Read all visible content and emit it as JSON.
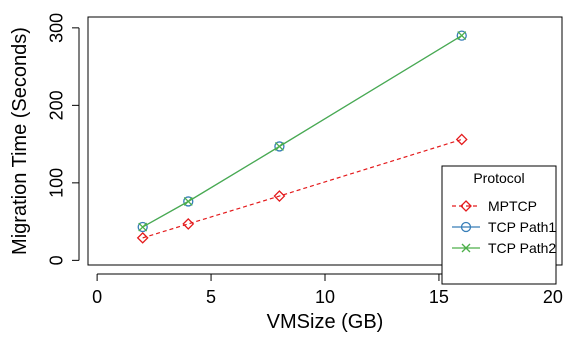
{
  "chart_data": {
    "type": "line",
    "xlabel": "VMSize (GB)",
    "ylabel": "Migration Time (Seconds)",
    "xlim": [
      -0.4,
      20.4
    ],
    "ylim": [
      -6,
      314
    ],
    "x_ticks": [
      0,
      5,
      10,
      15,
      20
    ],
    "y_ticks": [
      0,
      100,
      200,
      300
    ],
    "grid": false,
    "legend": {
      "title": "Protocol",
      "placement": "bottom-right"
    },
    "series": [
      {
        "name": "MPTCP",
        "color": "#e41a1c",
        "dash": "dashed",
        "marker": "diamond",
        "x": [
          2,
          4,
          8,
          16
        ],
        "y": [
          29,
          47,
          83,
          156
        ]
      },
      {
        "name": "TCP Path1",
        "color": "#377eb8",
        "dash": "solid",
        "marker": "circle",
        "x": [
          2,
          4,
          8,
          16
        ],
        "y": [
          43,
          76,
          147,
          290
        ]
      },
      {
        "name": "TCP Path2",
        "color": "#4daf4a",
        "dash": "solid",
        "marker": "cross",
        "x": [
          2,
          4,
          8,
          16
        ],
        "y": [
          43,
          76,
          147,
          290
        ]
      }
    ]
  }
}
